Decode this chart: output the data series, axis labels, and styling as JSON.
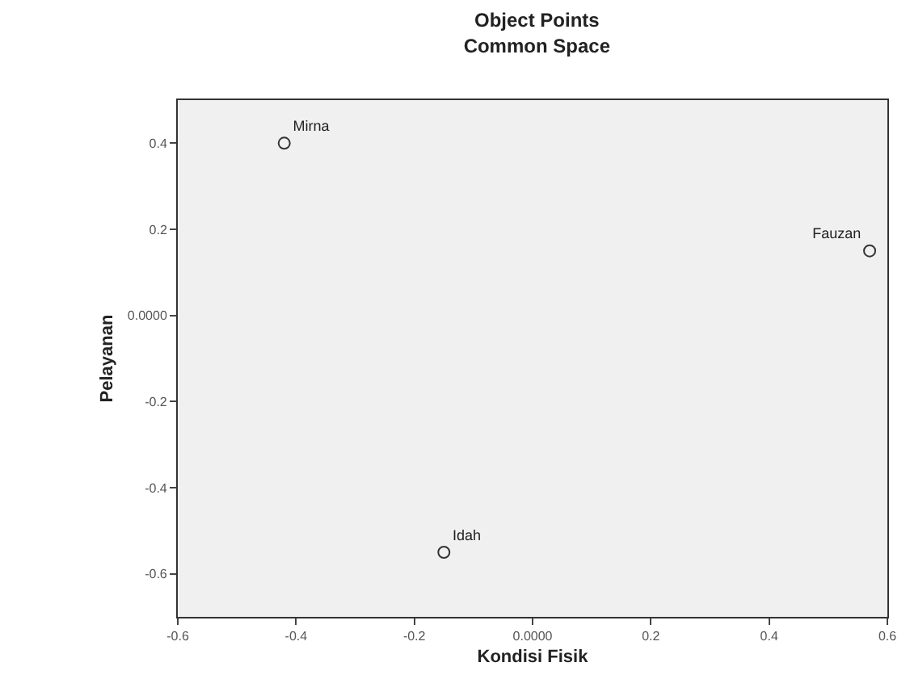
{
  "chart_data": {
    "type": "scatter",
    "title": "Object Points",
    "subtitle": "Common Space",
    "xlabel": "Kondisi Fisik",
    "ylabel": "Pelayanan",
    "x": [
      -0.42,
      0.57,
      -0.15
    ],
    "series": [
      {
        "color": "#333333",
        "values": [
          0.4,
          0.15,
          -0.55
        ],
        "value_labels": [
          "Mirna",
          "Fauzan",
          "Idah"
        ]
      }
    ],
    "marker": "circle",
    "grid": false,
    "xlim": [
      -0.6,
      0.6
    ],
    "ylim": [
      -0.7,
      0.5
    ],
    "xticks": [
      -0.6,
      -0.4,
      -0.2,
      {
        "value": 0,
        "label": "0.0000"
      },
      0.2,
      0.4,
      0.6
    ],
    "yticks": [
      -0.6,
      -0.4,
      -0.2,
      {
        "value": 0,
        "label": "0.0000"
      },
      0.2,
      0.4
    ]
  }
}
